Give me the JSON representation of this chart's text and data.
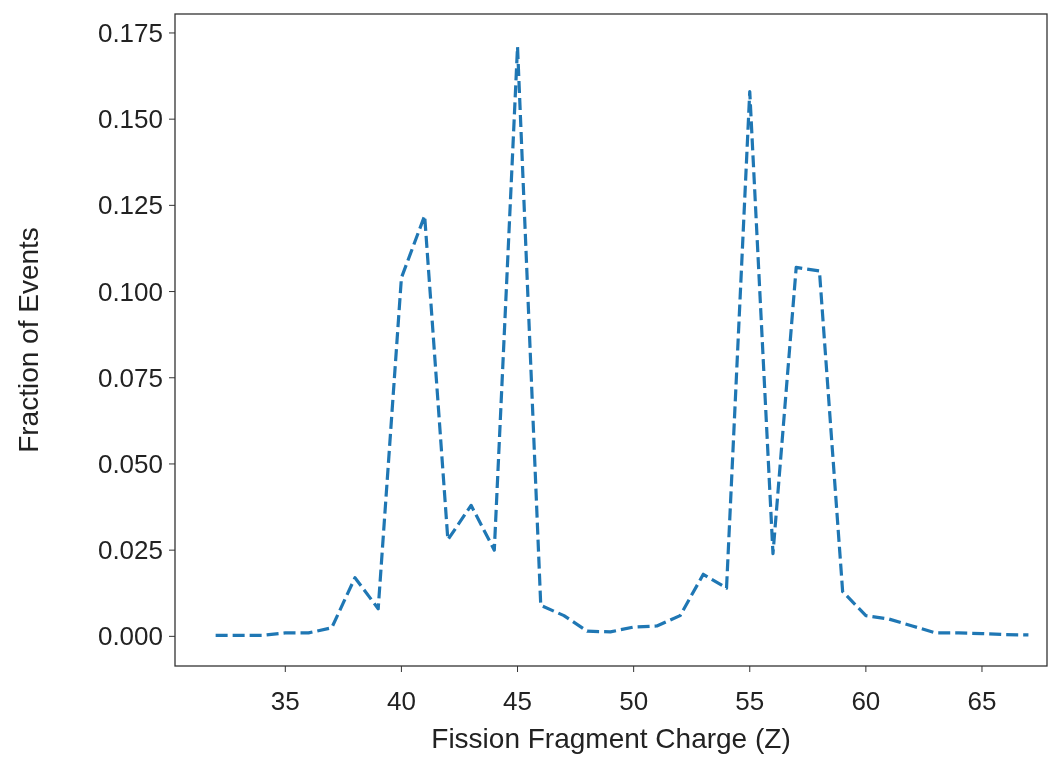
{
  "chart_data": {
    "type": "line",
    "xlabel": "Fission Fragment Charge (Z)",
    "ylabel": "Fraction of Events",
    "x": [
      32,
      33,
      34,
      35,
      36,
      37,
      38,
      39,
      40,
      41,
      42,
      43,
      44,
      45,
      46,
      47,
      48,
      49,
      50,
      51,
      52,
      53,
      54,
      55,
      56,
      57,
      58,
      59,
      60,
      61,
      62,
      63,
      64,
      65,
      66,
      67
    ],
    "series": [
      {
        "color": "#1f77b4",
        "values": [
          0.0003,
          0.0003,
          0.0003,
          0.001,
          0.001,
          0.0025,
          0.017,
          0.008,
          0.104,
          0.122,
          0.028,
          0.038,
          0.025,
          0.171,
          0.009,
          0.006,
          0.0015,
          0.0013,
          0.0027,
          0.003,
          0.006,
          0.018,
          0.014,
          0.158,
          0.024,
          0.107,
          0.106,
          0.013,
          0.006,
          0.005,
          0.003,
          0.001,
          0.001,
          0.0008,
          0.0005,
          0.0004
        ]
      }
    ],
    "xlim": [
      30.25,
      67.8
    ],
    "xticks": [
      35,
      40,
      45,
      50,
      55,
      60,
      65
    ],
    "ylim": [
      -0.0086,
      0.1805
    ],
    "yticks": [
      {
        "value": 0,
        "label": "0.000"
      },
      {
        "value": 0.025,
        "label": "0.025"
      },
      {
        "value": 0.05,
        "label": "0.050"
      },
      {
        "value": 0.075,
        "label": "0.075"
      },
      {
        "value": 0.1,
        "label": "0.100"
      },
      {
        "value": 0.125,
        "label": "0.125"
      },
      {
        "value": 0.15,
        "label": "0.150"
      },
      {
        "value": 0.175,
        "label": "0.175"
      }
    ],
    "grid": false,
    "marker": "none",
    "line_style": "dashed"
  }
}
